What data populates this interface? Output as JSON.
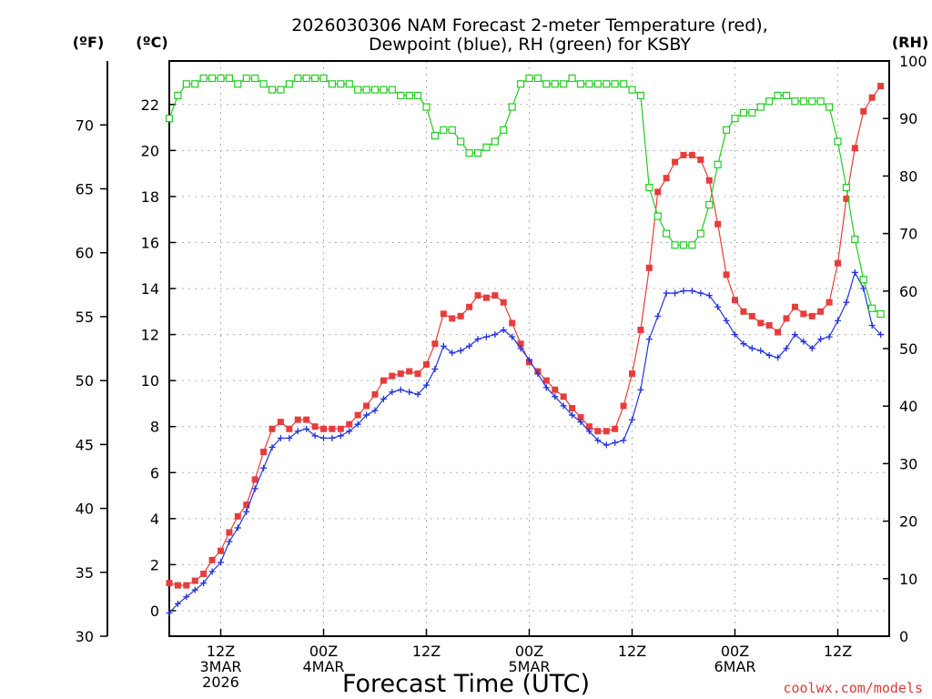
{
  "chart_data": {
    "type": "line",
    "title_line1": "2026030306 NAM Forecast 2-meter Temperature (red),",
    "title_line2": "Dewpoint (blue), RH (green) for KSBY",
    "xlabel": "Forecast Time (UTC)",
    "credit": "coolwx.com/models",
    "units": {
      "f": "(ºF)",
      "c": "(ºC)",
      "rh": "(RH)"
    },
    "x_hours_range": [
      6,
      90
    ],
    "y_celsius_range": [
      -1.11,
      23.89
    ],
    "y_rh_range": [
      0,
      100
    ],
    "f_ticks": [
      30,
      35,
      40,
      45,
      50,
      55,
      60,
      65,
      70
    ],
    "c_ticks": [
      0,
      2,
      4,
      6,
      8,
      10,
      12,
      14,
      16,
      18,
      20,
      22
    ],
    "rh_ticks": [
      0,
      10,
      20,
      30,
      40,
      50,
      60,
      70,
      80,
      90,
      100
    ],
    "x_ticks": [
      {
        "h": 12,
        "l1": "12Z",
        "l2": "3MAR",
        "l3": "2026"
      },
      {
        "h": 24,
        "l1": "00Z",
        "l2": "4MAR",
        "l3": ""
      },
      {
        "h": 36,
        "l1": "12Z",
        "l2": "",
        "l3": ""
      },
      {
        "h": 48,
        "l1": "00Z",
        "l2": "5MAR",
        "l3": ""
      },
      {
        "h": 60,
        "l1": "12Z",
        "l2": "",
        "l3": ""
      },
      {
        "h": 72,
        "l1": "00Z",
        "l2": "6MAR",
        "l3": ""
      },
      {
        "h": 84,
        "l1": "12Z",
        "l2": "",
        "l3": ""
      }
    ],
    "grid": true,
    "colors": {
      "temperature": "#e83c3c",
      "dewpoint": "#2233dd",
      "rh": "#22cc22",
      "grid": "#b0b0b0"
    },
    "series": [
      {
        "name": "Temperature",
        "unit": "C",
        "values": [
          1.2,
          1.1,
          1.1,
          1.3,
          1.6,
          2.2,
          2.6,
          3.4,
          4.1,
          4.6,
          5.7,
          6.9,
          7.9,
          8.2,
          7.9,
          8.3,
          8.3,
          8.0,
          7.9,
          7.9,
          7.9,
          8.1,
          8.5,
          8.9,
          9.4,
          10.0,
          10.2,
          10.3,
          10.4,
          10.3,
          10.7,
          11.6,
          12.9,
          12.7,
          12.8,
          13.2,
          13.7,
          13.6,
          13.7,
          13.4,
          12.5,
          11.6,
          10.8,
          10.4,
          10.0,
          9.6,
          9.3,
          8.8,
          8.4,
          8.0,
          7.8,
          7.8,
          7.9,
          8.9,
          10.3,
          12.2,
          14.9,
          18.2,
          18.8,
          19.5,
          19.8,
          19.8,
          19.6,
          18.7,
          16.8,
          14.6,
          13.5,
          13.0,
          12.8,
          12.5,
          12.4,
          12.1,
          12.7,
          13.2,
          12.9,
          12.8,
          13.0,
          13.4,
          15.1,
          17.9,
          20.1,
          21.7,
          22.3,
          22.8
        ]
      },
      {
        "name": "Dewpoint",
        "unit": "C",
        "values": [
          -0.1,
          0.3,
          0.6,
          0.9,
          1.2,
          1.7,
          2.1,
          3.0,
          3.6,
          4.3,
          5.3,
          6.2,
          7.1,
          7.5,
          7.5,
          7.8,
          7.9,
          7.6,
          7.5,
          7.5,
          7.6,
          7.8,
          8.1,
          8.5,
          8.7,
          9.2,
          9.5,
          9.6,
          9.5,
          9.4,
          9.8,
          10.5,
          11.5,
          11.2,
          11.3,
          11.5,
          11.8,
          11.9,
          12.0,
          12.2,
          11.9,
          11.4,
          10.9,
          10.3,
          9.7,
          9.3,
          8.9,
          8.5,
          8.2,
          7.8,
          7.4,
          7.2,
          7.3,
          7.4,
          8.3,
          9.6,
          11.8,
          12.8,
          13.8,
          13.8,
          13.9,
          13.9,
          13.8,
          13.7,
          13.2,
          12.6,
          12.0,
          11.6,
          11.4,
          11.3,
          11.1,
          11.0,
          11.4,
          12.0,
          11.7,
          11.4,
          11.8,
          11.9,
          12.6,
          13.4,
          14.7,
          14.0,
          12.4,
          12.0
        ]
      },
      {
        "name": "RH",
        "unit": "%",
        "values": [
          90,
          94,
          96,
          96,
          97,
          97,
          97,
          97,
          96,
          97,
          97,
          96,
          95,
          95,
          96,
          97,
          97,
          97,
          97,
          96,
          96,
          96,
          95,
          95,
          95,
          95,
          95,
          94,
          94,
          94,
          92,
          87,
          88,
          88,
          86,
          84,
          84,
          85,
          86,
          88,
          92,
          96,
          97,
          97,
          96,
          96,
          96,
          97,
          96,
          96,
          96,
          96,
          96,
          96,
          95,
          94,
          78,
          73,
          70,
          68,
          68,
          68,
          70,
          75,
          82,
          88,
          90,
          91,
          91,
          92,
          93,
          94,
          94,
          93,
          93,
          93,
          93,
          92,
          86,
          78,
          69,
          62,
          57,
          56
        ]
      }
    ]
  }
}
